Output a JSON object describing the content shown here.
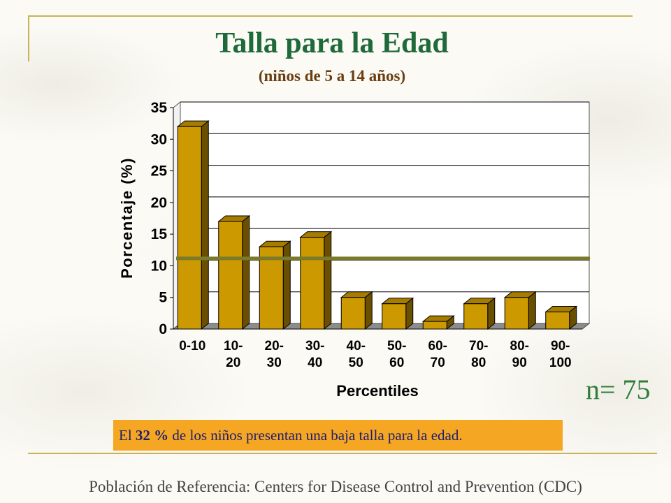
{
  "slide": {
    "title": "Talla para la Edad",
    "subtitle": "(niños de 5 a 14 años)",
    "n_label": "n= 75",
    "note": {
      "prefix": "El ",
      "value": "32 %",
      "suffix": " de los niños presentan una baja talla para la edad."
    },
    "footer": "Población de Referencia:  Centers for Disease Control and Prevention (CDC)",
    "colors": {
      "title": "#1f6a3a",
      "subtitle": "#6b3e12",
      "bar": "#cc9900",
      "reference_line": "#7a7a2a",
      "note_bg": "#f5a623"
    }
  },
  "chart_data": {
    "type": "bar",
    "categories": [
      [
        "0-10"
      ],
      [
        "10-",
        "20"
      ],
      [
        "20-",
        "30"
      ],
      [
        "30-",
        "40"
      ],
      [
        "40-",
        "50"
      ],
      [
        "50-",
        "60"
      ],
      [
        "60-",
        "70"
      ],
      [
        "70-",
        "80"
      ],
      [
        "80-",
        "90"
      ],
      [
        "90-",
        "100"
      ]
    ],
    "values": [
      32,
      17,
      13,
      14.5,
      5,
      4,
      1.2,
      4,
      5,
      2.7
    ],
    "reference_line": 10.5,
    "xlabel": "Percentiles",
    "ylabel": "Porcentaje (%)",
    "ylim": [
      0,
      35
    ],
    "yticks": [
      0,
      5,
      10,
      15,
      20,
      25,
      30,
      35
    ],
    "grid": true,
    "style": "3d"
  }
}
